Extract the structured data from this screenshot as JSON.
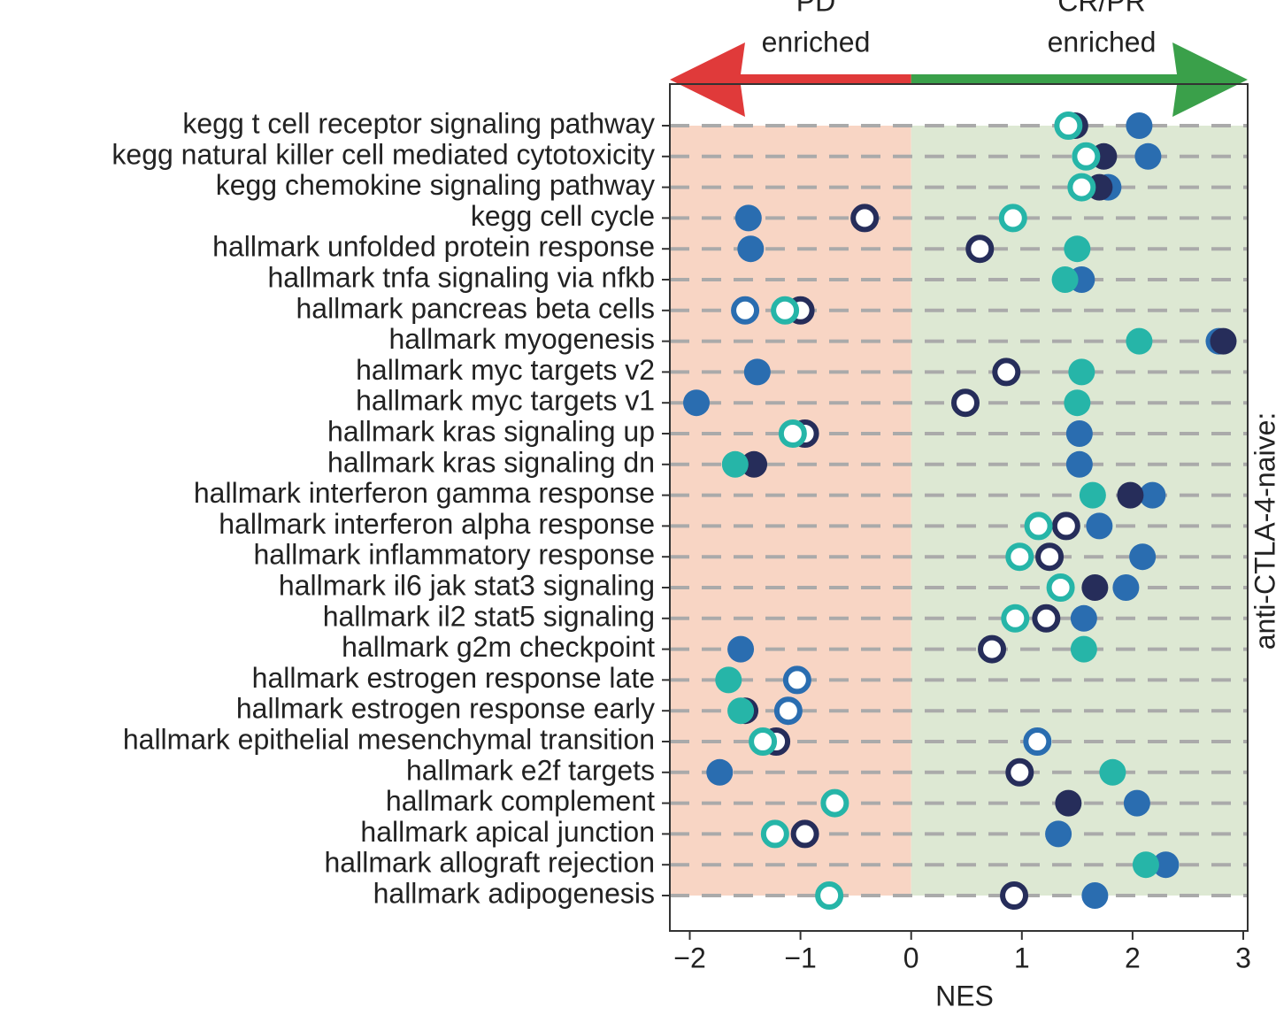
{
  "chart_data": {
    "type": "dot",
    "top_left_labels": [
      "PD",
      "enriched"
    ],
    "top_right_labels": [
      "CR/PR",
      "enriched"
    ],
    "x_label": "NES",
    "right_label": "anti-CTLA-4-naive:",
    "categories": [
      "kegg t cell receptor signaling pathway",
      "kegg natural killer cell mediated cytotoxicity",
      "kegg chemokine signaling pathway",
      "kegg cell cycle",
      "hallmark unfolded protein response",
      "hallmark tnfa signaling via nfkb",
      "hallmark pancreas beta cells",
      "hallmark myogenesis",
      "hallmark myc targets v2",
      "hallmark myc targets v1",
      "hallmark kras signaling up",
      "hallmark kras signaling dn",
      "hallmark interferon gamma response",
      "hallmark interferon alpha response",
      "hallmark inflammatory response",
      "hallmark il6 jak stat3 signaling",
      "hallmark il2 stat5 signaling",
      "hallmark g2m checkpoint",
      "hallmark estrogen response late",
      "hallmark estrogen response early",
      "hallmark epithelial mesenchymal transition",
      "hallmark e2f targets",
      "hallmark complement",
      "hallmark apical junction",
      "hallmark allograft rejection",
      "hallmark adipogenesis"
    ],
    "series": [
      {
        "color": "#2a6db0",
        "open": false,
        "values": [
          2.06,
          2.14,
          1.78,
          -1.47,
          -1.45,
          1.54,
          null,
          2.78,
          -1.39,
          -1.94,
          1.52,
          1.52,
          2.18,
          1.7,
          2.09,
          1.94,
          1.56,
          -1.54,
          null,
          null,
          null,
          -1.73,
          2.04,
          1.33,
          2.3,
          1.66
        ]
      },
      {
        "color": "#2a6db0",
        "open": true,
        "values": [
          null,
          null,
          null,
          null,
          null,
          null,
          -1.5,
          null,
          null,
          null,
          null,
          null,
          null,
          null,
          null,
          null,
          null,
          null,
          -1.03,
          -1.11,
          1.14,
          null,
          null,
          null,
          null,
          null
        ]
      },
      {
        "color": "#262d5a",
        "open": false,
        "values": [
          1.48,
          1.74,
          1.7,
          null,
          null,
          null,
          null,
          2.82,
          null,
          null,
          null,
          -1.42,
          1.98,
          null,
          null,
          1.66,
          null,
          null,
          null,
          -1.5,
          null,
          null,
          1.42,
          null,
          null,
          null
        ]
      },
      {
        "color": "#262d5a",
        "open": true,
        "values": [
          null,
          null,
          null,
          -0.42,
          0.62,
          null,
          -1.0,
          null,
          0.86,
          0.49,
          -0.96,
          null,
          null,
          1.4,
          1.25,
          null,
          1.22,
          0.73,
          null,
          null,
          -1.22,
          0.98,
          null,
          -0.96,
          null,
          0.93
        ]
      },
      {
        "color": "#26b5a8",
        "open": false,
        "values": [
          null,
          null,
          null,
          null,
          1.5,
          1.39,
          null,
          2.06,
          1.54,
          1.5,
          null,
          -1.59,
          1.64,
          null,
          null,
          null,
          null,
          1.56,
          -1.65,
          -1.54,
          null,
          1.82,
          null,
          null,
          2.12,
          null
        ]
      },
      {
        "color": "#26b5a8",
        "open": true,
        "values": [
          1.42,
          1.58,
          1.54,
          0.92,
          null,
          null,
          -1.14,
          null,
          null,
          null,
          -1.07,
          null,
          null,
          1.15,
          0.98,
          1.35,
          0.94,
          null,
          null,
          null,
          -1.34,
          null,
          -0.69,
          -1.23,
          null,
          -0.74
        ]
      }
    ],
    "xlim": [
      -2.18,
      3.04
    ],
    "xticks": [
      {
        "value": -2,
        "label": "−2"
      },
      {
        "value": -1,
        "label": "−1"
      },
      0,
      1,
      2,
      3
    ],
    "left_color": "#f8d5c4",
    "right_color": "#dde8d3",
    "grid": true
  }
}
